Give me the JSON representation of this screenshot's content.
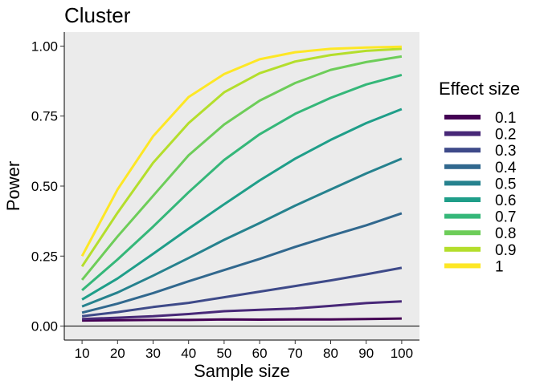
{
  "chart_data": {
    "type": "line",
    "title": "Cluster",
    "xlabel": "Sample size",
    "ylabel": "Power",
    "x": [
      10,
      20,
      30,
      40,
      50,
      60,
      70,
      80,
      90,
      100
    ],
    "xlim": [
      5,
      105
    ],
    "ylim": [
      -0.05,
      1.05
    ],
    "xticks": [
      "10",
      "20",
      "30",
      "40",
      "50",
      "60",
      "70",
      "80",
      "90",
      "100"
    ],
    "yticks": [
      "0.00",
      "0.25",
      "0.50",
      "0.75",
      "1.00"
    ],
    "ytick_values": [
      0,
      0.25,
      0.5,
      0.75,
      1.0
    ],
    "reference_line_y": 0,
    "panel_background": "#ebebeb",
    "grid": false,
    "legend": {
      "title": "Effect size",
      "position": "right"
    },
    "series": [
      {
        "name": "0.1",
        "color": "#440154",
        "values": [
          0.02,
          0.021,
          0.022,
          0.022,
          0.024,
          0.023,
          0.024,
          0.024,
          0.025,
          0.027
        ]
      },
      {
        "name": "0.2",
        "color": "#482878",
        "values": [
          0.025,
          0.03,
          0.035,
          0.043,
          0.053,
          0.058,
          0.063,
          0.072,
          0.082,
          0.088
        ]
      },
      {
        "name": "0.3",
        "color": "#3E4A89",
        "values": [
          0.035,
          0.05,
          0.068,
          0.083,
          0.103,
          0.123,
          0.143,
          0.163,
          0.185,
          0.208
        ]
      },
      {
        "name": "0.4",
        "color": "#31688E",
        "values": [
          0.048,
          0.08,
          0.118,
          0.16,
          0.2,
          0.24,
          0.283,
          0.322,
          0.36,
          0.403
        ]
      },
      {
        "name": "0.5",
        "color": "#26828E",
        "values": [
          0.07,
          0.12,
          0.18,
          0.243,
          0.308,
          0.368,
          0.43,
          0.488,
          0.545,
          0.598
        ]
      },
      {
        "name": "0.6",
        "color": "#1F9E89",
        "values": [
          0.095,
          0.17,
          0.258,
          0.348,
          0.435,
          0.52,
          0.598,
          0.665,
          0.725,
          0.775
        ]
      },
      {
        "name": "0.7",
        "color": "#35B779",
        "values": [
          0.128,
          0.238,
          0.355,
          0.478,
          0.593,
          0.685,
          0.758,
          0.815,
          0.863,
          0.897
        ]
      },
      {
        "name": "0.8",
        "color": "#6DCD59",
        "values": [
          0.165,
          0.32,
          0.465,
          0.61,
          0.72,
          0.805,
          0.868,
          0.915,
          0.943,
          0.963
        ]
      },
      {
        "name": "0.9",
        "color": "#B4DE2C",
        "values": [
          0.213,
          0.405,
          0.583,
          0.725,
          0.835,
          0.903,
          0.945,
          0.968,
          0.983,
          0.99
        ]
      },
      {
        "name": "1",
        "color": "#FDE725",
        "values": [
          0.25,
          0.488,
          0.678,
          0.818,
          0.9,
          0.953,
          0.978,
          0.99,
          0.995,
          0.998
        ]
      }
    ]
  }
}
